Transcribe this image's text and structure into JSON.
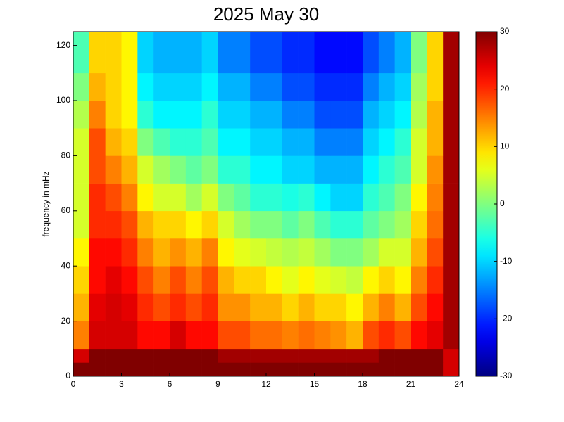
{
  "chart_data": {
    "type": "heatmap",
    "title": "2025 May 30",
    "y_label": "frequency in mHz",
    "colormap": "jet",
    "xbins": [
      0,
      1,
      2,
      3,
      4,
      5,
      6,
      7,
      8,
      9,
      10,
      11,
      12,
      13,
      14,
      15,
      16,
      17,
      18,
      19,
      20,
      21,
      22,
      23,
      24
    ],
    "ybins": [
      0,
      5,
      10,
      20,
      30,
      40,
      50,
      60,
      70,
      80,
      90,
      100,
      110,
      125
    ],
    "xlim": [
      0,
      24
    ],
    "xticks": [
      0,
      3,
      6,
      9,
      12,
      15,
      18,
      21,
      24
    ],
    "ylim": [
      0,
      125
    ],
    "yticks": [
      0,
      20,
      40,
      60,
      80,
      100,
      120
    ],
    "clim": [
      -30,
      30
    ],
    "cticks": [
      -30,
      -20,
      -10,
      0,
      10,
      20,
      30
    ],
    "z": [
      [
        30,
        30,
        30,
        30,
        30,
        30,
        30,
        30,
        30,
        30,
        30,
        30,
        30,
        30,
        30,
        30,
        30,
        30,
        30,
        30,
        30,
        30,
        30,
        25
      ],
      [
        25,
        30,
        30,
        30,
        30,
        30,
        30,
        30,
        30,
        28,
        28,
        28,
        28,
        28,
        28,
        28,
        28,
        28,
        28,
        30,
        30,
        30,
        30,
        25
      ],
      [
        15,
        25,
        25,
        25,
        22,
        22,
        25,
        22,
        22,
        18,
        18,
        16,
        16,
        15,
        16,
        15,
        14,
        12,
        18,
        20,
        18,
        22,
        24,
        28
      ],
      [
        12,
        24,
        25,
        24,
        20,
        18,
        20,
        18,
        20,
        14,
        14,
        12,
        12,
        10,
        12,
        10,
        10,
        8,
        12,
        15,
        12,
        18,
        22,
        28
      ],
      [
        10,
        22,
        24,
        22,
        18,
        15,
        18,
        15,
        18,
        12,
        10,
        10,
        8,
        6,
        8,
        6,
        5,
        4,
        8,
        10,
        8,
        15,
        20,
        28
      ],
      [
        8,
        22,
        22,
        20,
        15,
        12,
        14,
        12,
        15,
        8,
        6,
        5,
        4,
        3,
        4,
        2,
        0,
        0,
        2,
        5,
        5,
        12,
        18,
        28
      ],
      [
        5,
        20,
        20,
        18,
        12,
        10,
        10,
        8,
        10,
        5,
        2,
        0,
        0,
        -2,
        0,
        -3,
        -5,
        -5,
        -2,
        0,
        2,
        10,
        16,
        28
      ],
      [
        5,
        20,
        18,
        15,
        8,
        5,
        5,
        2,
        5,
        0,
        -2,
        -5,
        -5,
        -6,
        -5,
        -8,
        -10,
        -10,
        -5,
        -3,
        0,
        8,
        15,
        28
      ],
      [
        5,
        18,
        15,
        12,
        5,
        2,
        0,
        -2,
        0,
        -5,
        -5,
        -8,
        -8,
        -10,
        -10,
        -12,
        -12,
        -12,
        -8,
        -5,
        -3,
        5,
        14,
        28
      ],
      [
        5,
        18,
        12,
        10,
        0,
        -3,
        -5,
        -5,
        -3,
        -8,
        -8,
        -10,
        -10,
        -12,
        -12,
        -15,
        -15,
        -15,
        -10,
        -8,
        -5,
        5,
        12,
        28
      ],
      [
        3,
        15,
        10,
        8,
        -5,
        -8,
        -8,
        -8,
        -5,
        -10,
        -10,
        -12,
        -12,
        -15,
        -15,
        -18,
        -18,
        -18,
        -12,
        -10,
        -8,
        3,
        12,
        28
      ],
      [
        0,
        12,
        10,
        8,
        -8,
        -10,
        -10,
        -10,
        -8,
        -12,
        -12,
        -15,
        -15,
        -18,
        -18,
        -20,
        -20,
        -20,
        -15,
        -12,
        -10,
        2,
        10,
        28
      ],
      [
        -3,
        10,
        10,
        8,
        -10,
        -12,
        -12,
        -12,
        -10,
        -15,
        -15,
        -18,
        -18,
        -20,
        -20,
        -22,
        -22,
        -22,
        -18,
        -15,
        -12,
        0,
        10,
        28
      ]
    ]
  }
}
